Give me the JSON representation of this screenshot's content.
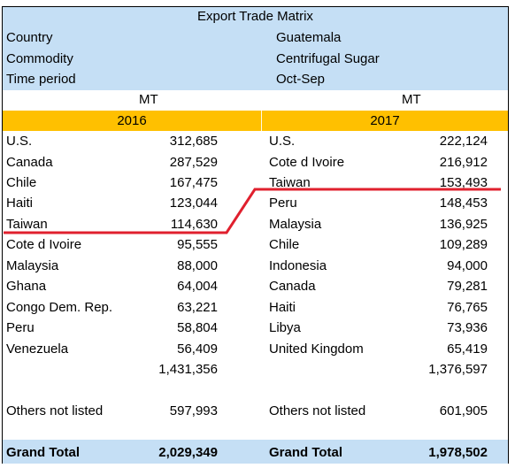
{
  "title": "Export Trade Matrix",
  "info": {
    "country_label": "Country",
    "country_value": "Guatemala",
    "commodity_label": "Commodity",
    "commodity_value": "Centrifugal Sugar",
    "period_label": "Time period",
    "period_value": "Oct-Sep"
  },
  "unit_left": "MT",
  "unit_right": "MT",
  "left": {
    "year": "2016",
    "rows": [
      {
        "country": "U.S.",
        "value": "312,685"
      },
      {
        "country": "Canada",
        "value": "287,529"
      },
      {
        "country": "Chile",
        "value": "167,475"
      },
      {
        "country": "Haiti",
        "value": "123,044"
      },
      {
        "country": "Taiwan",
        "value": "114,630"
      },
      {
        "country": "Cote d Ivoire",
        "value": "95,555"
      },
      {
        "country": "Malaysia",
        "value": "88,000"
      },
      {
        "country": "Ghana",
        "value": "64,004"
      },
      {
        "country": "Congo Dem. Rep.",
        "value": "63,221"
      },
      {
        "country": "Peru",
        "value": "58,804"
      },
      {
        "country": "Venezuela",
        "value": "56,409"
      }
    ],
    "subtotal": "1,431,356",
    "others_label": "Others not listed",
    "others_value": "597,993",
    "grand_label": "Grand Total",
    "grand_value": "2,029,349"
  },
  "right": {
    "year": "2017",
    "rows": [
      {
        "country": "U.S.",
        "value": "222,124"
      },
      {
        "country": "Cote d Ivoire",
        "value": "216,912"
      },
      {
        "country": "Taiwan",
        "value": "153,493"
      },
      {
        "country": "Peru",
        "value": "148,453"
      },
      {
        "country": "Malaysia",
        "value": "136,925"
      },
      {
        "country": "Chile",
        "value": "109,289"
      },
      {
        "country": "Indonesia",
        "value": "94,000"
      },
      {
        "country": "Canada",
        "value": "79,281"
      },
      {
        "country": "Haiti",
        "value": "76,765"
      },
      {
        "country": "Libya",
        "value": "73,936"
      },
      {
        "country": "United Kingdom",
        "value": "65,419"
      }
    ],
    "subtotal": "1,376,597",
    "others_label": "Others not listed",
    "others_value": "601,905",
    "grand_label": "Grand Total",
    "grand_value": "1,978,502"
  },
  "colors": {
    "header_blue": "#c5dff5",
    "year_gold": "#ffc000",
    "annotation_red": "#e0202e"
  }
}
